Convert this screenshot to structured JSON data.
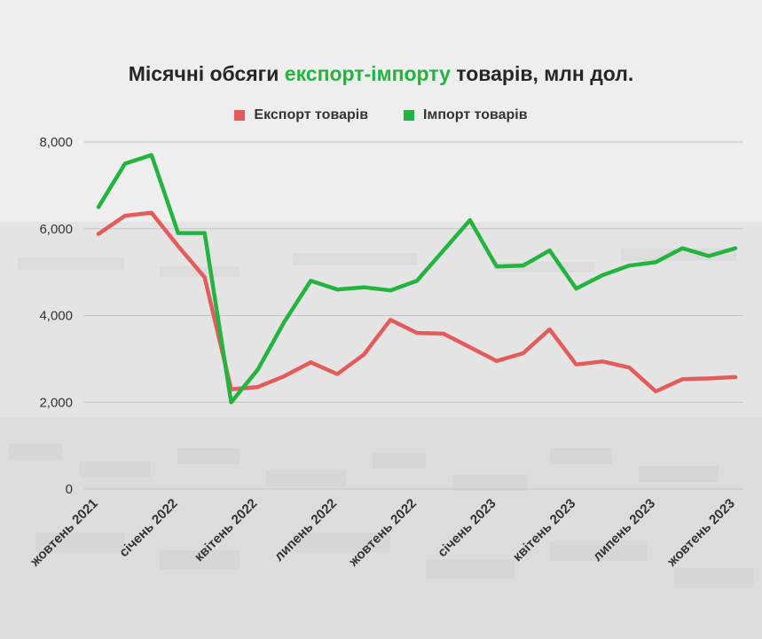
{
  "title": {
    "part1": "Місячні обсяги ",
    "accent": "експорт-імпорту",
    "part2": " товарів, млн дол."
  },
  "colors": {
    "export": "#e35b5b",
    "import": "#22b43f",
    "accent": "#22b43f"
  },
  "chart_data": {
    "type": "line",
    "title": "Місячні обсяги експорт-імпорту товарів, млн дол.",
    "xlabel": "",
    "ylabel": "",
    "ylim": [
      0,
      8000
    ],
    "yticks": [
      0,
      2000,
      4000,
      6000,
      8000
    ],
    "ytick_labels": [
      "0",
      "2,000",
      "4,000",
      "6,000",
      "8,000"
    ],
    "grid": "horizontal",
    "legend_position": "top-center",
    "x": [
      "жовтень 2021",
      "листопад 2021",
      "грудень 2021",
      "січень 2022",
      "лютий 2022",
      "березень 2022",
      "квітень 2022",
      "травень 2022",
      "червень 2022",
      "липень 2022",
      "серпень 2022",
      "вересень 2022",
      "жовтень 2022",
      "листопад 2022",
      "грудень 2022",
      "січень 2023",
      "лютий 2023",
      "березень 2023",
      "квітень 2023",
      "травень 2023",
      "червень 2023",
      "липень 2023",
      "серпень 2023",
      "вересень 2023",
      "жовтень 2023"
    ],
    "x_tick_labels": [
      {
        "index": 0,
        "label": "жовтень 2021"
      },
      {
        "index": 3,
        "label": "січень 2022"
      },
      {
        "index": 6,
        "label": "квітень 2022"
      },
      {
        "index": 9,
        "label": "липень 2022"
      },
      {
        "index": 12,
        "label": "жовтень 2022"
      },
      {
        "index": 15,
        "label": "січень 2023"
      },
      {
        "index": 18,
        "label": "квітень 2023"
      },
      {
        "index": 21,
        "label": "липень 2023"
      },
      {
        "index": 24,
        "label": "жовтень 2023"
      }
    ],
    "series": [
      {
        "name": "Експорт товарів",
        "color": "#e35b5b",
        "values": [
          5880,
          6300,
          6370,
          5600,
          4880,
          2300,
          2350,
          2600,
          2920,
          2650,
          3100,
          3900,
          3600,
          3580,
          3270,
          2950,
          3130,
          3680,
          2870,
          2940,
          2800,
          2250,
          2530,
          2550,
          2580
        ]
      },
      {
        "name": "Імпорт товарів",
        "color": "#22b43f",
        "values": [
          6500,
          7500,
          7700,
          5900,
          5900,
          2000,
          2750,
          3850,
          4800,
          4600,
          4650,
          4580,
          4800,
          5500,
          6200,
          5130,
          5150,
          5500,
          4620,
          4930,
          5150,
          5230,
          5550,
          5370,
          5550
        ]
      }
    ]
  }
}
